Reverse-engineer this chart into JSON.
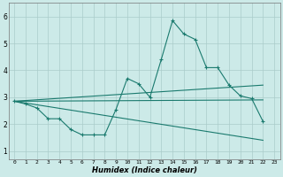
{
  "xlabel": "Humidex (Indice chaleur)",
  "ylabel": "",
  "xlim": [
    -0.5,
    23.5
  ],
  "ylim": [
    0.7,
    6.5
  ],
  "yticks": [
    1,
    2,
    3,
    4,
    5,
    6
  ],
  "xticks": [
    0,
    1,
    2,
    3,
    4,
    5,
    6,
    7,
    8,
    9,
    10,
    11,
    12,
    13,
    14,
    15,
    16,
    17,
    18,
    19,
    20,
    21,
    22,
    23
  ],
  "bg_color": "#cceae8",
  "grid_color": "#aaccca",
  "line_color": "#1a7a6e",
  "series1_x": [
    0,
    1,
    2,
    3,
    4,
    5,
    6,
    7,
    8,
    9,
    10,
    11,
    12,
    13,
    14,
    15,
    16,
    17,
    18,
    19,
    20,
    21,
    22
  ],
  "series1_y": [
    2.85,
    2.75,
    2.6,
    2.2,
    2.2,
    1.8,
    1.6,
    1.6,
    1.6,
    2.55,
    3.7,
    3.5,
    3.0,
    4.4,
    5.85,
    5.35,
    5.15,
    4.1,
    4.1,
    3.45,
    3.05,
    2.95,
    2.1
  ],
  "series2_x": [
    0,
    22
  ],
  "series2_y": [
    2.85,
    1.4
  ],
  "series3_x": [
    0,
    22
  ],
  "series3_y": [
    2.85,
    3.45
  ],
  "series4_x": [
    0,
    22
  ],
  "series4_y": [
    2.85,
    2.9
  ],
  "figsize": [
    3.2,
    2.0
  ],
  "dpi": 100
}
